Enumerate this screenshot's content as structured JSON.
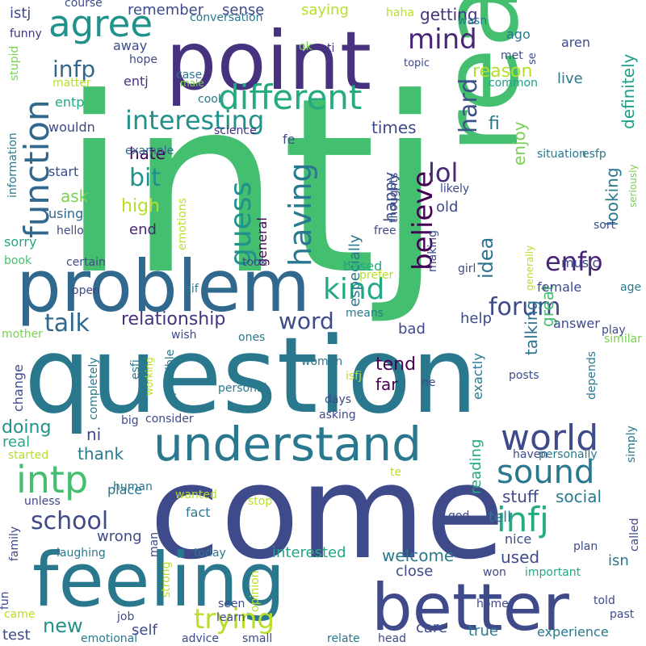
{
  "words": [
    {
      "text": "intj",
      "color": "#44bf70"
    },
    {
      "text": "come",
      "color": "#3e4a89"
    },
    {
      "text": "question",
      "color": "#2a788e"
    },
    {
      "text": "read",
      "color": "#44bf70"
    },
    {
      "text": "problem",
      "color": "#31688e"
    },
    {
      "text": "point",
      "color": "#46327e"
    },
    {
      "text": "feeling",
      "color": "#2a788e"
    },
    {
      "text": "better",
      "color": "#3e4a89"
    },
    {
      "text": "understand",
      "color": "#2a788e"
    },
    {
      "text": "different",
      "color": "#25ab82"
    },
    {
      "text": "agree",
      "color": "#21918c"
    },
    {
      "text": "mind",
      "color": "#482576"
    },
    {
      "text": "infp",
      "color": "#31688e"
    },
    {
      "text": "interesting",
      "color": "#21918c"
    },
    {
      "text": "function",
      "color": "#31688e"
    },
    {
      "text": "world",
      "color": "#3e4a89"
    },
    {
      "text": "sound",
      "color": "#2a788e"
    },
    {
      "text": "infj",
      "color": "#25ab82"
    },
    {
      "text": "intp",
      "color": "#44bf70"
    },
    {
      "text": "kind",
      "color": "#22a884"
    },
    {
      "text": "guess",
      "color": "#21918c"
    },
    {
      "text": "believe",
      "color": "#440154"
    },
    {
      "text": "forum",
      "color": "#3e4a89"
    },
    {
      "text": "trying",
      "color": "#b8de29"
    },
    {
      "text": "school",
      "color": "#3e4a89"
    },
    {
      "text": "bit",
      "color": "#21918c"
    },
    {
      "text": "lol",
      "color": "#482878"
    },
    {
      "text": "talk",
      "color": "#31688e"
    },
    {
      "text": "word",
      "color": "#3e4a89"
    },
    {
      "text": "having",
      "color": "#2a788e"
    },
    {
      "text": "enfp",
      "color": "#482576"
    },
    {
      "text": "relationship",
      "color": "#46327e"
    },
    {
      "text": "definitely",
      "color": "#1f9e89"
    },
    {
      "text": "enjoy",
      "color": "#7ad151"
    },
    {
      "text": "hard",
      "color": "#3b528b"
    },
    {
      "text": "getting",
      "color": "#46327e"
    },
    {
      "text": "reason",
      "color": "#b5de2b"
    },
    {
      "text": "times",
      "color": "#3e4a89"
    },
    {
      "text": "hate",
      "color": "#440154"
    },
    {
      "text": "high",
      "color": "#b8de29"
    },
    {
      "text": "ask",
      "color": "#7ad151"
    },
    {
      "text": "end",
      "color": "#482576"
    },
    {
      "text": "idea",
      "color": "#2c728e"
    },
    {
      "text": "happy",
      "color": "#3b528b"
    },
    {
      "text": "great",
      "color": "#44bf70"
    },
    {
      "text": "talking",
      "color": "#2c728e"
    },
    {
      "text": "looking",
      "color": "#2a788e"
    },
    {
      "text": "especially",
      "color": "#2a788e"
    },
    {
      "text": "general",
      "color": "#440154"
    },
    {
      "text": "fi",
      "color": "#2a788e"
    },
    {
      "text": "remember",
      "color": "#3e4a89"
    },
    {
      "text": "sense",
      "color": "#3e4a89"
    },
    {
      "text": "saying",
      "color": "#b5de2b"
    },
    {
      "text": "course",
      "color": "#3e4a89"
    },
    {
      "text": "conversation",
      "color": "#2a788e"
    },
    {
      "text": "haha",
      "color": "#b5de2b"
    },
    {
      "text": "wasn",
      "color": "#2a788e"
    },
    {
      "text": "istj",
      "color": "#3e4a89"
    },
    {
      "text": "funny",
      "color": "#46327e"
    },
    {
      "text": "away",
      "color": "#3e4a89"
    },
    {
      "text": "hope",
      "color": "#3e4a89"
    },
    {
      "text": "entj",
      "color": "#46327e"
    },
    {
      "text": "case",
      "color": "#2a788e"
    },
    {
      "text": "male",
      "color": "#7ad151"
    },
    {
      "text": "ago",
      "color": "#2a788e"
    },
    {
      "text": "aren",
      "color": "#3e4a89"
    },
    {
      "text": "met",
      "color": "#3b528b"
    },
    {
      "text": "topic",
      "color": "#3e4a89"
    },
    {
      "text": "se",
      "color": "#3e4a89"
    },
    {
      "text": "common",
      "color": "#1f9e89"
    },
    {
      "text": "live",
      "color": "#2a788e"
    },
    {
      "text": "ok",
      "color": "#7ad151"
    },
    {
      "text": "ti",
      "color": "#46327e"
    },
    {
      "text": "matter",
      "color": "#b5de2b"
    },
    {
      "text": "stupid",
      "color": "#7ad151"
    },
    {
      "text": "information",
      "color": "#2a788e"
    },
    {
      "text": "cool",
      "color": "#2a788e"
    },
    {
      "text": "entp",
      "color": "#22a884"
    },
    {
      "text": "wouldn",
      "color": "#3e4a89"
    },
    {
      "text": "science",
      "color": "#46327e"
    },
    {
      "text": "fe",
      "color": "#3b528b"
    },
    {
      "text": "example",
      "color": "#31688e"
    },
    {
      "text": "situation",
      "color": "#2a788e"
    },
    {
      "text": "esfp",
      "color": "#2a788e"
    },
    {
      "text": "seriously",
      "color": "#7ad151"
    },
    {
      "text": "start",
      "color": "#3e4a89"
    },
    {
      "text": "using",
      "color": "#31688e"
    },
    {
      "text": "hello",
      "color": "#3e4a89"
    },
    {
      "text": "sorry",
      "color": "#22a884"
    },
    {
      "text": "book",
      "color": "#44bf70"
    },
    {
      "text": "certain",
      "color": "#3e4a89"
    },
    {
      "text": "took",
      "color": "#3e4a89"
    },
    {
      "text": "thoughts",
      "color": "#3e4a89"
    },
    {
      "text": "free",
      "color": "#3e4a89"
    },
    {
      "text": "likely",
      "color": "#3e4a89"
    },
    {
      "text": "old",
      "color": "#3e4a89"
    },
    {
      "text": "emotions",
      "color": "#b8de29"
    },
    {
      "text": "sort",
      "color": "#3e4a89"
    },
    {
      "text": "female",
      "color": "#3e4a89"
    },
    {
      "text": "music",
      "color": "#3e4a89"
    },
    {
      "text": "based",
      "color": "#22a884"
    },
    {
      "text": "making",
      "color": "#3e4a89"
    },
    {
      "text": "girl",
      "color": "#3e4a89"
    },
    {
      "text": "generally",
      "color": "#b8de29"
    },
    {
      "text": "prefer",
      "color": "#b8de29"
    },
    {
      "text": "open",
      "color": "#3e4a89"
    },
    {
      "text": "gif",
      "color": "#2a788e"
    },
    {
      "text": "means",
      "color": "#2a788e"
    },
    {
      "text": "age",
      "color": "#2a788e"
    },
    {
      "text": "help",
      "color": "#3e4a89"
    },
    {
      "text": "answer",
      "color": "#3e4a89"
    },
    {
      "text": "bad",
      "color": "#3e4a89"
    },
    {
      "text": "mother",
      "color": "#7ad151"
    },
    {
      "text": "wish",
      "color": "#3e4a89"
    },
    {
      "text": "ones",
      "color": "#2a788e"
    },
    {
      "text": "similar",
      "color": "#7ad151"
    },
    {
      "text": "play",
      "color": "#3e4a89"
    },
    {
      "text": "tend",
      "color": "#440154"
    },
    {
      "text": "far",
      "color": "#440154"
    },
    {
      "text": "exactly",
      "color": "#2a788e"
    },
    {
      "text": "change",
      "color": "#3e4a89"
    },
    {
      "text": "completely",
      "color": "#2a788e"
    },
    {
      "text": "working",
      "color": "#b5de2b"
    },
    {
      "text": "esfj",
      "color": "#2a788e"
    },
    {
      "text": "possible",
      "color": "#2a788e"
    },
    {
      "text": "women",
      "color": "#2a788e"
    },
    {
      "text": "isfj",
      "color": "#b8de29"
    },
    {
      "text": "ne",
      "color": "#3e4a89"
    },
    {
      "text": "personal",
      "color": "#2a788e"
    },
    {
      "text": "days",
      "color": "#3e4a89"
    },
    {
      "text": "depends",
      "color": "#2a788e"
    },
    {
      "text": "posts",
      "color": "#3e4a89"
    },
    {
      "text": "doing",
      "color": "#21918c"
    },
    {
      "text": "big",
      "color": "#3e4a89"
    },
    {
      "text": "consider",
      "color": "#3e4a89"
    },
    {
      "text": "asking",
      "color": "#3e4a89"
    },
    {
      "text": "real",
      "color": "#22a884"
    },
    {
      "text": "ni",
      "color": "#3e4a89"
    },
    {
      "text": "thank",
      "color": "#2a788e"
    },
    {
      "text": "started",
      "color": "#b8de29"
    },
    {
      "text": "haven",
      "color": "#3e4a89"
    },
    {
      "text": "personally",
      "color": "#2a788e"
    },
    {
      "text": "simply",
      "color": "#2a788e"
    },
    {
      "text": "reading",
      "color": "#22a884"
    },
    {
      "text": "place",
      "color": "#2a788e"
    },
    {
      "text": "human",
      "color": "#2a788e"
    },
    {
      "text": "te",
      "color": "#b8de29"
    },
    {
      "text": "stuff",
      "color": "#3e4a89"
    },
    {
      "text": "social",
      "color": "#2a788e"
    },
    {
      "text": "unless",
      "color": "#3e4a89"
    },
    {
      "text": "man",
      "color": "#3e4a89"
    },
    {
      "text": "wanted",
      "color": "#b8de29"
    },
    {
      "text": "stop",
      "color": "#b8de29"
    },
    {
      "text": "god",
      "color": "#3e4a89"
    },
    {
      "text": "called",
      "color": "#3e4a89"
    },
    {
      "text": "tell",
      "color": "#2a788e"
    },
    {
      "text": "wrong",
      "color": "#3e4a89"
    },
    {
      "text": "fact",
      "color": "#2a788e"
    },
    {
      "text": "nice",
      "color": "#3e4a89"
    },
    {
      "text": "family",
      "color": "#3e4a89"
    },
    {
      "text": "laughing",
      "color": "#2a788e"
    },
    {
      "text": "today",
      "color": "#2a788e"
    },
    {
      "text": "interested",
      "color": "#22a884"
    },
    {
      "text": "welcome",
      "color": "#2a788e"
    },
    {
      "text": "isn",
      "color": "#2a788e"
    },
    {
      "text": "plan",
      "color": "#3e4a89"
    },
    {
      "text": "used",
      "color": "#3e4a89"
    },
    {
      "text": "close",
      "color": "#3e4a89"
    },
    {
      "text": "won",
      "color": "#3e4a89"
    },
    {
      "text": "important",
      "color": "#22a884"
    },
    {
      "text": "fun",
      "color": "#3e4a89"
    },
    {
      "text": "strong",
      "color": "#b8de29"
    },
    {
      "text": "seen",
      "color": "#3e4a89"
    },
    {
      "text": "learn",
      "color": "#3e4a89"
    },
    {
      "text": "opinion",
      "color": "#b8de29"
    },
    {
      "text": "home",
      "color": "#3e4a89"
    },
    {
      "text": "told",
      "color": "#3e4a89"
    },
    {
      "text": "past",
      "color": "#3e4a89"
    },
    {
      "text": "came",
      "color": "#b8de29"
    },
    {
      "text": "job",
      "color": "#3e4a89"
    },
    {
      "text": "test",
      "color": "#3e4a89"
    },
    {
      "text": "emotional",
      "color": "#2a788e"
    },
    {
      "text": "advice",
      "color": "#3e4a89"
    },
    {
      "text": "small",
      "color": "#3e4a89"
    },
    {
      "text": "relate",
      "color": "#2a788e"
    },
    {
      "text": "head",
      "color": "#3e4a89"
    },
    {
      "text": "new",
      "color": "#21918c"
    },
    {
      "text": "self",
      "color": "#3e4a89"
    },
    {
      "text": "care",
      "color": "#3e4a89"
    },
    {
      "text": "true",
      "color": "#2a788e"
    },
    {
      "text": "experience",
      "color": "#2a788e"
    }
  ]
}
